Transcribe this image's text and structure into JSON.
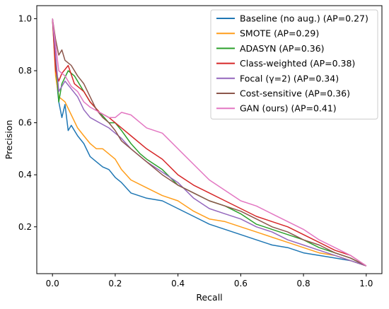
{
  "chart_data": {
    "type": "line",
    "xlabel": "Recall",
    "ylabel": "Precision",
    "xlim": [
      -0.05,
      1.05
    ],
    "ylim": [
      0.02,
      1.05
    ],
    "xticks": [
      {
        "v": 0.0,
        "label": "0.0"
      },
      {
        "v": 0.2,
        "label": "0.2"
      },
      {
        "v": 0.4,
        "label": "0.4"
      },
      {
        "v": 0.6,
        "label": "0.6"
      },
      {
        "v": 0.8,
        "label": "0.8"
      },
      {
        "v": 1.0,
        "label": "1.0"
      }
    ],
    "yticks": [
      {
        "v": 0.2,
        "label": "0.2"
      },
      {
        "v": 0.4,
        "label": "0.4"
      },
      {
        "v": 0.6,
        "label": "0.6"
      },
      {
        "v": 0.8,
        "label": "0.8"
      },
      {
        "v": 1.0,
        "label": "1.0"
      }
    ],
    "grid": false,
    "legend_position": "top-right",
    "series": [
      {
        "name": "Baseline (no aug.) (AP=0.27)",
        "color": "#1f77b4",
        "points": [
          [
            0.0,
            1.0
          ],
          [
            0.01,
            0.8
          ],
          [
            0.02,
            0.68
          ],
          [
            0.03,
            0.62
          ],
          [
            0.04,
            0.67
          ],
          [
            0.05,
            0.57
          ],
          [
            0.06,
            0.59
          ],
          [
            0.08,
            0.55
          ],
          [
            0.1,
            0.52
          ],
          [
            0.12,
            0.47
          ],
          [
            0.14,
            0.45
          ],
          [
            0.16,
            0.43
          ],
          [
            0.18,
            0.42
          ],
          [
            0.2,
            0.39
          ],
          [
            0.22,
            0.37
          ],
          [
            0.25,
            0.33
          ],
          [
            0.3,
            0.31
          ],
          [
            0.35,
            0.3
          ],
          [
            0.4,
            0.27
          ],
          [
            0.45,
            0.24
          ],
          [
            0.5,
            0.21
          ],
          [
            0.55,
            0.19
          ],
          [
            0.6,
            0.17
          ],
          [
            0.65,
            0.15
          ],
          [
            0.7,
            0.13
          ],
          [
            0.75,
            0.12
          ],
          [
            0.8,
            0.1
          ],
          [
            0.85,
            0.09
          ],
          [
            0.9,
            0.08
          ],
          [
            0.95,
            0.07
          ],
          [
            1.0,
            0.05
          ]
        ]
      },
      {
        "name": "SMOTE (AP=0.29)",
        "color": "#ff9e1b",
        "points": [
          [
            0.0,
            1.0
          ],
          [
            0.01,
            0.78
          ],
          [
            0.02,
            0.7
          ],
          [
            0.04,
            0.68
          ],
          [
            0.06,
            0.63
          ],
          [
            0.08,
            0.58
          ],
          [
            0.1,
            0.55
          ],
          [
            0.12,
            0.52
          ],
          [
            0.14,
            0.5
          ],
          [
            0.16,
            0.5
          ],
          [
            0.18,
            0.48
          ],
          [
            0.2,
            0.46
          ],
          [
            0.22,
            0.42
          ],
          [
            0.25,
            0.38
          ],
          [
            0.3,
            0.35
          ],
          [
            0.35,
            0.32
          ],
          [
            0.4,
            0.3
          ],
          [
            0.45,
            0.26
          ],
          [
            0.5,
            0.23
          ],
          [
            0.55,
            0.22
          ],
          [
            0.6,
            0.2
          ],
          [
            0.65,
            0.18
          ],
          [
            0.7,
            0.16
          ],
          [
            0.75,
            0.14
          ],
          [
            0.8,
            0.12
          ],
          [
            0.85,
            0.1
          ],
          [
            0.9,
            0.09
          ],
          [
            0.95,
            0.07
          ],
          [
            1.0,
            0.05
          ]
        ]
      },
      {
        "name": "ADASYN (AP=0.36)",
        "color": "#2ca02c",
        "points": [
          [
            0.0,
            1.0
          ],
          [
            0.01,
            0.85
          ],
          [
            0.02,
            0.68
          ],
          [
            0.03,
            0.75
          ],
          [
            0.05,
            0.8
          ],
          [
            0.07,
            0.78
          ],
          [
            0.1,
            0.72
          ],
          [
            0.12,
            0.68
          ],
          [
            0.15,
            0.64
          ],
          [
            0.18,
            0.6
          ],
          [
            0.2,
            0.6
          ],
          [
            0.22,
            0.57
          ],
          [
            0.25,
            0.52
          ],
          [
            0.28,
            0.48
          ],
          [
            0.3,
            0.46
          ],
          [
            0.35,
            0.42
          ],
          [
            0.4,
            0.36
          ],
          [
            0.45,
            0.33
          ],
          [
            0.5,
            0.3
          ],
          [
            0.55,
            0.28
          ],
          [
            0.6,
            0.25
          ],
          [
            0.65,
            0.21
          ],
          [
            0.7,
            0.19
          ],
          [
            0.75,
            0.17
          ],
          [
            0.8,
            0.15
          ],
          [
            0.85,
            0.12
          ],
          [
            0.9,
            0.1
          ],
          [
            0.95,
            0.08
          ],
          [
            1.0,
            0.05
          ]
        ]
      },
      {
        "name": "Class-weighted (AP=0.38)",
        "color": "#d62728",
        "points": [
          [
            0.0,
            1.0
          ],
          [
            0.01,
            0.8
          ],
          [
            0.02,
            0.76
          ],
          [
            0.03,
            0.79
          ],
          [
            0.05,
            0.82
          ],
          [
            0.07,
            0.75
          ],
          [
            0.1,
            0.72
          ],
          [
            0.12,
            0.68
          ],
          [
            0.15,
            0.64
          ],
          [
            0.18,
            0.62
          ],
          [
            0.2,
            0.6
          ],
          [
            0.22,
            0.58
          ],
          [
            0.25,
            0.55
          ],
          [
            0.3,
            0.5
          ],
          [
            0.35,
            0.46
          ],
          [
            0.4,
            0.4
          ],
          [
            0.45,
            0.36
          ],
          [
            0.5,
            0.33
          ],
          [
            0.55,
            0.3
          ],
          [
            0.6,
            0.27
          ],
          [
            0.65,
            0.24
          ],
          [
            0.7,
            0.22
          ],
          [
            0.75,
            0.2
          ],
          [
            0.8,
            0.17
          ],
          [
            0.85,
            0.14
          ],
          [
            0.9,
            0.11
          ],
          [
            0.95,
            0.09
          ],
          [
            1.0,
            0.05
          ]
        ]
      },
      {
        "name": "Focal (γ=2) (AP=0.34)",
        "color": "#9467bd",
        "points": [
          [
            0.0,
            1.0
          ],
          [
            0.01,
            0.86
          ],
          [
            0.02,
            0.72
          ],
          [
            0.04,
            0.76
          ],
          [
            0.06,
            0.73
          ],
          [
            0.08,
            0.7
          ],
          [
            0.1,
            0.65
          ],
          [
            0.12,
            0.62
          ],
          [
            0.15,
            0.6
          ],
          [
            0.18,
            0.58
          ],
          [
            0.2,
            0.56
          ],
          [
            0.22,
            0.54
          ],
          [
            0.25,
            0.5
          ],
          [
            0.3,
            0.45
          ],
          [
            0.35,
            0.41
          ],
          [
            0.4,
            0.37
          ],
          [
            0.45,
            0.31
          ],
          [
            0.5,
            0.27
          ],
          [
            0.55,
            0.25
          ],
          [
            0.6,
            0.23
          ],
          [
            0.65,
            0.2
          ],
          [
            0.7,
            0.18
          ],
          [
            0.75,
            0.15
          ],
          [
            0.8,
            0.13
          ],
          [
            0.85,
            0.11
          ],
          [
            0.9,
            0.09
          ],
          [
            0.95,
            0.07
          ],
          [
            1.0,
            0.05
          ]
        ]
      },
      {
        "name": "Cost-sensitive (AP=0.36)",
        "color": "#8c564b",
        "points": [
          [
            0.0,
            1.0
          ],
          [
            0.01,
            0.92
          ],
          [
            0.02,
            0.86
          ],
          [
            0.03,
            0.88
          ],
          [
            0.04,
            0.84
          ],
          [
            0.06,
            0.82
          ],
          [
            0.08,
            0.78
          ],
          [
            0.1,
            0.75
          ],
          [
            0.12,
            0.7
          ],
          [
            0.14,
            0.65
          ],
          [
            0.16,
            0.62
          ],
          [
            0.18,
            0.6
          ],
          [
            0.2,
            0.57
          ],
          [
            0.22,
            0.53
          ],
          [
            0.25,
            0.5
          ],
          [
            0.3,
            0.45
          ],
          [
            0.35,
            0.4
          ],
          [
            0.4,
            0.36
          ],
          [
            0.45,
            0.33
          ],
          [
            0.5,
            0.3
          ],
          [
            0.55,
            0.28
          ],
          [
            0.6,
            0.26
          ],
          [
            0.65,
            0.23
          ],
          [
            0.7,
            0.2
          ],
          [
            0.75,
            0.18
          ],
          [
            0.8,
            0.15
          ],
          [
            0.85,
            0.13
          ],
          [
            0.9,
            0.1
          ],
          [
            0.95,
            0.08
          ],
          [
            1.0,
            0.05
          ]
        ]
      },
      {
        "name": "GAN (ours) (AP=0.41)",
        "color": "#e377c2",
        "points": [
          [
            0.0,
            1.0
          ],
          [
            0.01,
            0.9
          ],
          [
            0.02,
            0.8
          ],
          [
            0.04,
            0.78
          ],
          [
            0.06,
            0.74
          ],
          [
            0.08,
            0.72
          ],
          [
            0.1,
            0.68
          ],
          [
            0.12,
            0.66
          ],
          [
            0.15,
            0.64
          ],
          [
            0.18,
            0.62
          ],
          [
            0.2,
            0.62
          ],
          [
            0.22,
            0.64
          ],
          [
            0.25,
            0.63
          ],
          [
            0.28,
            0.6
          ],
          [
            0.3,
            0.58
          ],
          [
            0.35,
            0.56
          ],
          [
            0.4,
            0.5
          ],
          [
            0.45,
            0.44
          ],
          [
            0.5,
            0.38
          ],
          [
            0.55,
            0.34
          ],
          [
            0.6,
            0.3
          ],
          [
            0.65,
            0.28
          ],
          [
            0.7,
            0.25
          ],
          [
            0.75,
            0.22
          ],
          [
            0.8,
            0.19
          ],
          [
            0.85,
            0.15
          ],
          [
            0.9,
            0.12
          ],
          [
            0.95,
            0.09
          ],
          [
            1.0,
            0.05
          ]
        ]
      }
    ]
  }
}
